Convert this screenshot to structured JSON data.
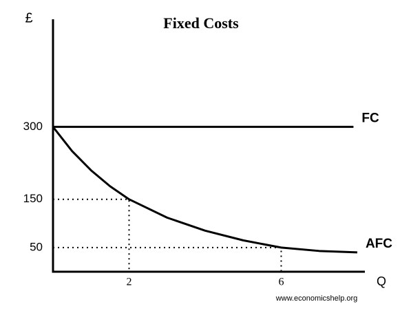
{
  "chart_data": {
    "type": "line",
    "title": "Fixed Costs",
    "y_label": "£",
    "x_label": "Q",
    "annotation": "www.economicshelp.org",
    "xlim": [
      0,
      8.2
    ],
    "ylim": [
      0,
      520
    ],
    "xticks": [
      2,
      6
    ],
    "yticks": [
      50,
      150,
      300
    ],
    "series": [
      {
        "name": "FC",
        "color": "#000000",
        "x": [
          0,
          7.9
        ],
        "values": [
          300,
          300
        ]
      },
      {
        "name": "AFC",
        "color": "#000000",
        "x": [
          0,
          0.5,
          1,
          1.5,
          2,
          3,
          4,
          5,
          6,
          7,
          8
        ],
        "values": [
          300,
          250,
          210,
          177,
          150,
          112,
          85,
          65,
          50,
          43,
          40
        ]
      }
    ],
    "guides": [
      {
        "x": 2,
        "y": 150
      },
      {
        "x": 6,
        "y": 50
      }
    ]
  }
}
